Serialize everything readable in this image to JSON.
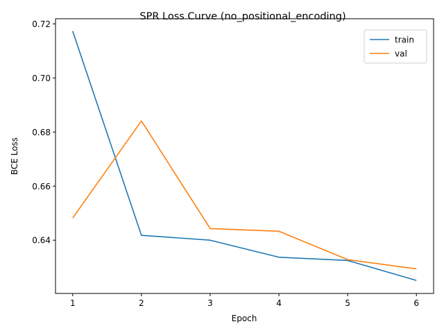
{
  "chart_data": {
    "type": "line",
    "title": "SPR Loss Curve (no_positional_encoding)",
    "xlabel": "Epoch",
    "ylabel": "BCE Loss",
    "x": [
      1,
      2,
      3,
      4,
      5,
      6
    ],
    "xlim": [
      0.75,
      6.25
    ],
    "ylim": [
      0.6203,
      0.7219
    ],
    "xticks": [
      1,
      2,
      3,
      4,
      5,
      6
    ],
    "yticks": [
      0.64,
      0.66,
      0.68,
      0.7,
      0.72
    ],
    "ytick_labels": [
      "0.64",
      "0.66",
      "0.68",
      "0.70",
      "0.72"
    ],
    "grid": false,
    "legend_position": "top-right",
    "series": [
      {
        "name": "train",
        "color": "#1f77b4",
        "values": [
          0.7173,
          0.6418,
          0.64,
          0.6337,
          0.6325,
          0.6251
        ]
      },
      {
        "name": "val",
        "color": "#ff7f0e",
        "values": [
          0.6482,
          0.6841,
          0.6443,
          0.6433,
          0.6328,
          0.6294
        ]
      }
    ]
  }
}
